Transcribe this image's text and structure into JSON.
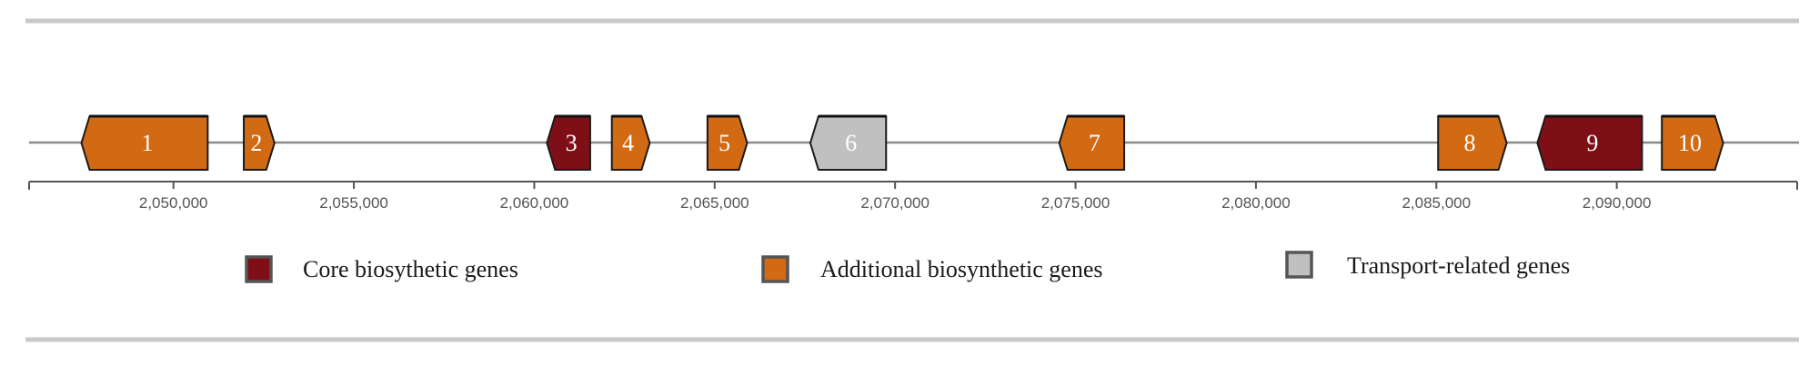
{
  "axis": {
    "min": 2046000,
    "max": 2095000,
    "ticks": [
      2050000,
      2055000,
      2060000,
      2065000,
      2070000,
      2075000,
      2080000,
      2085000,
      2090000
    ],
    "tick_labels": [
      "2,050,000",
      "2,055,000",
      "2,060,000",
      "2,065,000",
      "2,070,000",
      "2,075,000",
      "2,080,000",
      "2,085,000",
      "2,090,000"
    ]
  },
  "categories": {
    "core": {
      "color": "#7f0f17",
      "label": "Core biosythetic genes"
    },
    "additional": {
      "color": "#d16a12",
      "label": "Additional biosynthetic genes"
    },
    "transport": {
      "color": "#c0c0c0",
      "label": "Transport-related genes"
    }
  },
  "genes": [
    {
      "label": "1",
      "start": 2047450,
      "end": 2050950,
      "strand": "-",
      "category": "additional"
    },
    {
      "label": "2",
      "start": 2051950,
      "end": 2052800,
      "strand": "+",
      "category": "additional"
    },
    {
      "label": "3",
      "start": 2060350,
      "end": 2061550,
      "strand": "-",
      "category": "core"
    },
    {
      "label": "4",
      "start": 2062150,
      "end": 2063200,
      "strand": "+",
      "category": "additional"
    },
    {
      "label": "5",
      "start": 2064800,
      "end": 2065900,
      "strand": "+",
      "category": "additional"
    },
    {
      "label": "6",
      "start": 2067650,
      "end": 2069750,
      "strand": "-",
      "category": "transport"
    },
    {
      "label": "7",
      "start": 2074550,
      "end": 2076350,
      "strand": "-",
      "category": "additional"
    },
    {
      "label": "8",
      "start": 2085050,
      "end": 2086950,
      "strand": "+",
      "category": "additional"
    },
    {
      "label": "9",
      "start": 2087800,
      "end": 2090700,
      "strand": "-",
      "category": "core"
    },
    {
      "label": "10",
      "start": 2091250,
      "end": 2092950,
      "strand": "+",
      "category": "additional"
    }
  ],
  "legend": [
    {
      "category": "core"
    },
    {
      "category": "additional"
    },
    {
      "category": "transport"
    }
  ]
}
